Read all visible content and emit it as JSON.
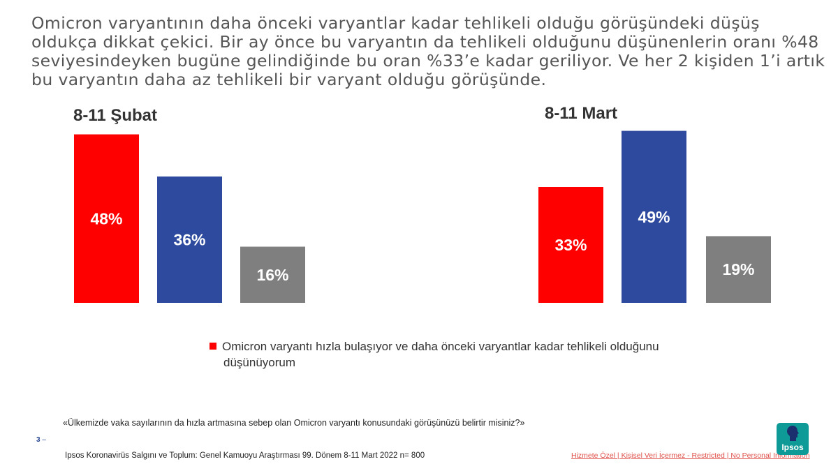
{
  "headline": "Omicron varyantının daha önceki varyantlar kadar tehlikeli olduğu görüşündeki düşüş oldukça dikkat çekici. Bir ay önce bu varyantın da tehlikeli olduğunu düşünenlerin oranı %48 seviyesindeyken bugüne gelindiğinde bu oran %33’e kadar geriliyor. Ve her 2 kişiden 1’i artık bu varyantın daha az tehlikeli bir varyant olduğu görüşünde.",
  "colors": {
    "red": "#ff0000",
    "blue": "#2e4a9e",
    "gray": "#7f7f7f"
  },
  "chart_data": [
    {
      "type": "bar",
      "title": "8-11 Şubat",
      "values": [
        48,
        36,
        16
      ],
      "labels": [
        "48%",
        "36%",
        "16%"
      ],
      "colors": [
        "#ff0000",
        "#2e4a9e",
        "#7f7f7f"
      ]
    },
    {
      "type": "bar",
      "title": "8-11 Mart",
      "values": [
        33,
        49,
        19
      ],
      "labels": [
        "33%",
        "49%",
        "19%"
      ],
      "colors": [
        "#ff0000",
        "#2e4a9e",
        "#7f7f7f"
      ]
    }
  ],
  "legend": {
    "items": [
      {
        "label": "Omicron varyantı hızla bulaşıyor ve daha önceki varyantlar kadar tehlikeli olduğunu",
        "label_cont": "düşünüyorum",
        "color": "#ff0000"
      }
    ]
  },
  "question": "«Ülkemizde vaka sayılarının da hızla artmasına sebep olan Omicron varyantı konusundaki görüşünüzü belirtir misiniz?»",
  "page_number": "3",
  "page_suffix": "–",
  "source": "Ipsos Koronavirüs  Salgını ve Toplum:  Genel Kamuoyu Araştırması 99. Dönem  8-11 Mart 2022 n= 800",
  "classification": "Hizmete Özel | Kişisel Veri İçermez - Restricted | No Personal Information",
  "logo_text": "Ipsos"
}
